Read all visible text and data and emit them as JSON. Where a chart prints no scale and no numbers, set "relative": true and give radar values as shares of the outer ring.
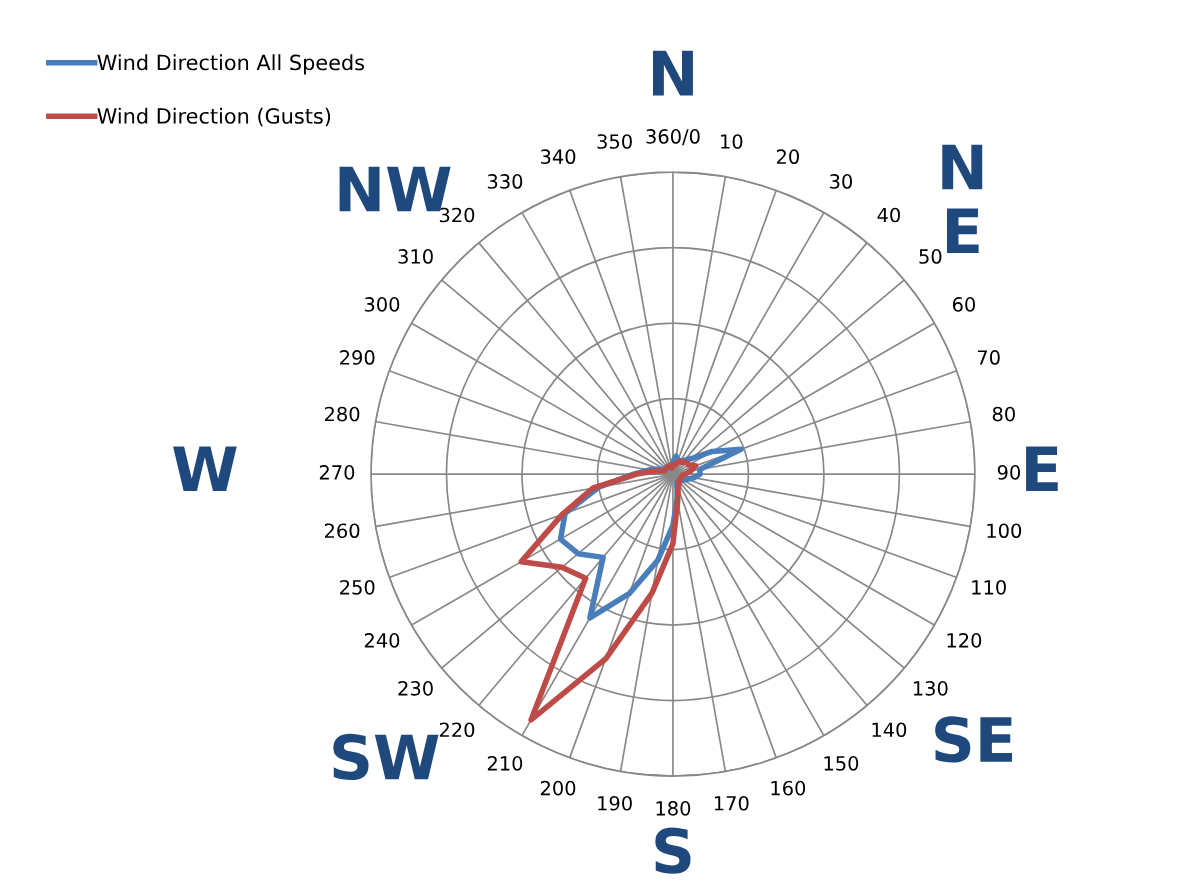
{
  "chart_data": {
    "type": "radar",
    "relative": true,
    "grid": true,
    "legend": "top left",
    "marker": "none",
    "categories": [
      "360/0",
      "10",
      "20",
      "30",
      "40",
      "50",
      "60",
      "70",
      "80",
      "90",
      "100",
      "110",
      "120",
      "130",
      "140",
      "150",
      "160",
      "170",
      "180",
      "190",
      "200",
      "210",
      "220",
      "230",
      "240",
      "250",
      "260",
      "270",
      "280",
      "290",
      "300",
      "310",
      "320",
      "330",
      "340",
      "350"
    ],
    "series": [
      {
        "name": "Wind Direction All Speeds",
        "color": "#4a7ebb",
        "values": [
          0.04,
          0.06,
          0.05,
          0.05,
          0.06,
          0.08,
          0.15,
          0.24,
          0.09,
          0.09,
          0.07,
          0.05,
          0.04,
          0.03,
          0.03,
          0.03,
          0.04,
          0.08,
          0.17,
          0.29,
          0.42,
          0.55,
          0.36,
          0.41,
          0.43,
          0.38,
          0.25,
          0.13,
          0.08,
          0.05,
          0.03,
          0.03,
          0.03,
          0.03,
          0.03,
          0.03
        ]
      },
      {
        "name": "Wind Direction (Gusts)",
        "color": "#be4b48",
        "values": [
          0.03,
          0.03,
          0.04,
          0.05,
          0.05,
          0.06,
          0.06,
          0.08,
          0.06,
          0.04,
          0.03,
          0.03,
          0.03,
          0.03,
          0.03,
          0.04,
          0.05,
          0.09,
          0.23,
          0.4,
          0.65,
          0.94,
          0.45,
          0.48,
          0.58,
          0.39,
          0.27,
          0.12,
          0.06,
          0.03,
          0.03,
          0.03,
          0.03,
          0.03,
          0.03,
          0.02
        ]
      }
    ],
    "annotations": [
      "N",
      "N\nE",
      "E",
      "SE",
      "S",
      "SW",
      "W",
      "NW"
    ]
  }
}
